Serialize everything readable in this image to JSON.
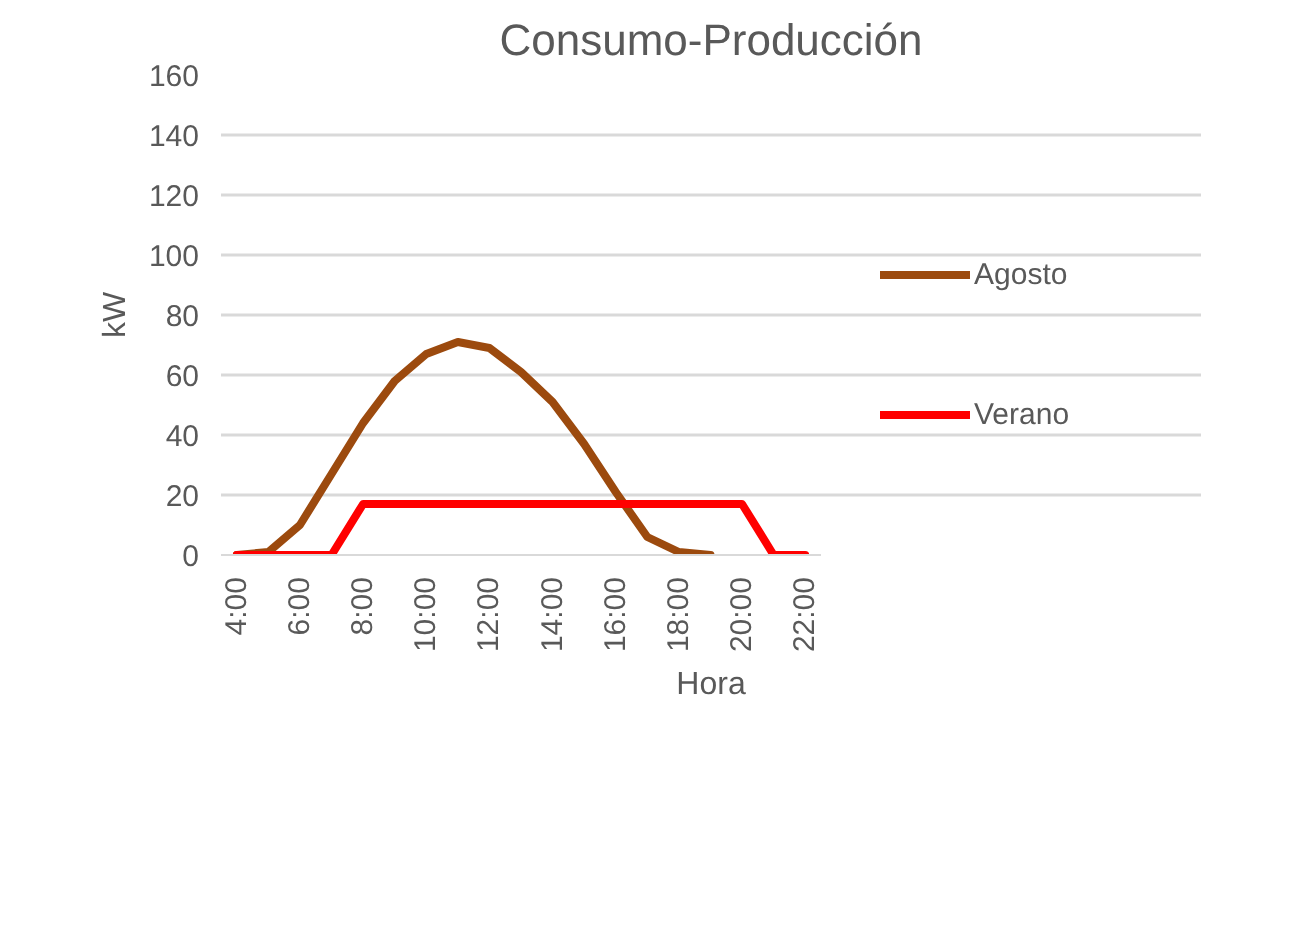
{
  "chart_data": {
    "type": "line",
    "title": "Consumo-Producción",
    "xlabel": "Hora",
    "ylabel": "kW",
    "categories": [
      "4:00",
      null,
      "6:00",
      null,
      "8:00",
      null,
      "10:00",
      null,
      "12:00",
      null,
      "14:00",
      null,
      "16:00",
      null,
      "18:00",
      null,
      "20:00",
      null,
      "22:00"
    ],
    "series": [
      {
        "name": "Agosto",
        "color": "#9c4a0e",
        "values": [
          0,
          1,
          10,
          27,
          44,
          58,
          67,
          71,
          69,
          61,
          51,
          37,
          21,
          6,
          1,
          0,
          null,
          null,
          null
        ]
      },
      {
        "name": "Verano",
        "color": "#ff0000",
        "values": [
          0,
          0,
          0,
          0,
          17,
          17,
          17,
          17,
          17,
          17,
          17,
          17,
          17,
          17,
          17,
          17,
          17,
          0,
          0
        ]
      }
    ],
    "ylim": [
      0,
      160
    ],
    "yticks": [
      0,
      20,
      40,
      60,
      80,
      100,
      120,
      140,
      160
    ],
    "grid": "y",
    "legend": "right",
    "marker": "none",
    "line_style": "solid"
  }
}
